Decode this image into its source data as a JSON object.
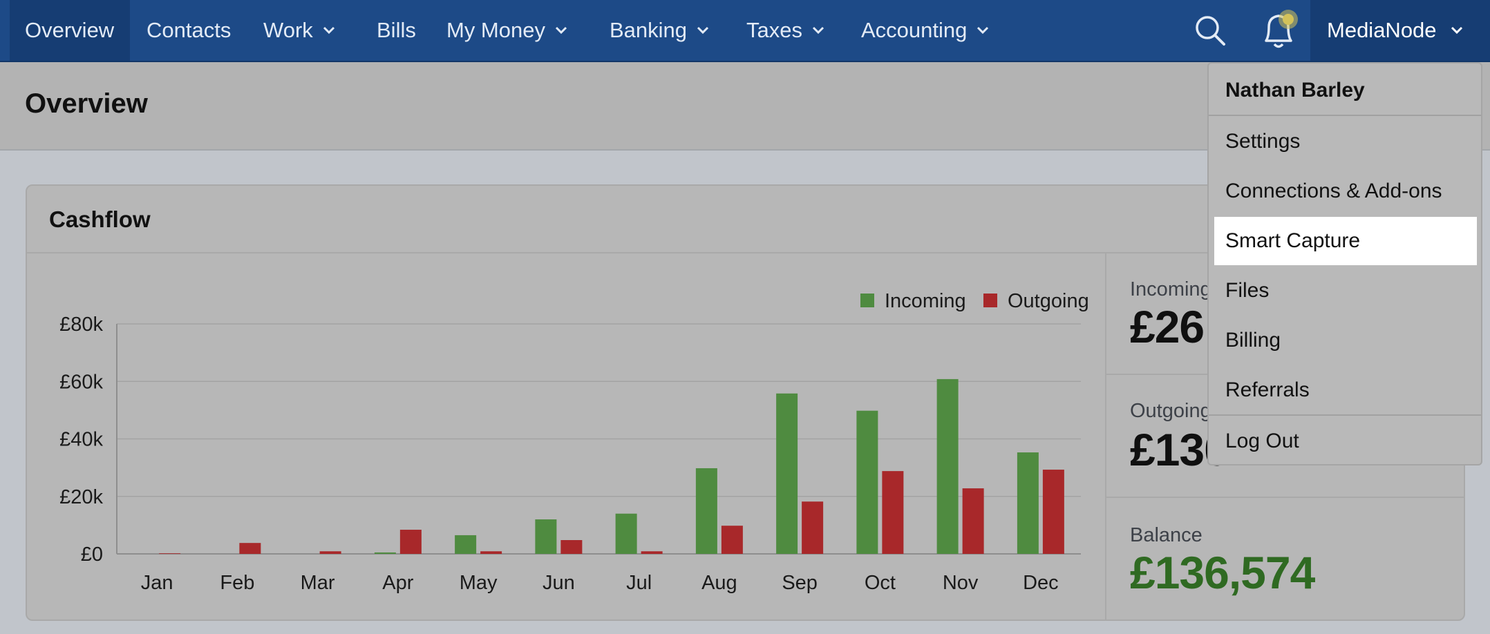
{
  "nav": {
    "items": [
      {
        "label": "Overview"
      },
      {
        "label": "Contacts"
      },
      {
        "label": "Work"
      },
      {
        "label": "Bills"
      },
      {
        "label": "My Money"
      },
      {
        "label": "Banking"
      },
      {
        "label": "Taxes"
      },
      {
        "label": "Accounting"
      }
    ],
    "account_label": "MediaNode",
    "search_icon": "search-icon",
    "notification_icon": "bell-icon"
  },
  "page": {
    "title": "Overview"
  },
  "cashflow": {
    "title": "Cashflow",
    "incoming_label": "Incoming",
    "incoming_value": "£26",
    "outgoing_label": "Outgoing",
    "outgoing_value": "£130",
    "balance_label": "Balance",
    "balance_value": "£136,574"
  },
  "account_menu": {
    "user_name": "Nathan Barley",
    "items": [
      {
        "label": "Settings"
      },
      {
        "label": "Connections & Add-ons"
      },
      {
        "label": "Smart Capture"
      },
      {
        "label": "Files"
      },
      {
        "label": "Billing"
      },
      {
        "label": "Referrals"
      }
    ],
    "logout_label": "Log Out"
  },
  "colors": {
    "incoming": "#4f8b40",
    "outgoing": "#a8282a",
    "balance": "#2f6a22",
    "nav_bg": "#1d4a87"
  },
  "chart_data": {
    "type": "bar",
    "categories": [
      "Jan",
      "Feb",
      "Mar",
      "Apr",
      "May",
      "Jun",
      "Jul",
      "Aug",
      "Sep",
      "Oct",
      "Nov",
      "Dec"
    ],
    "series": [
      {
        "name": "Incoming",
        "values": [
          0,
          0,
          0,
          500,
          6500,
          12000,
          14000,
          29800,
          55800,
          49800,
          60800,
          35300
        ]
      },
      {
        "name": "Outgoing",
        "values": [
          200,
          3800,
          900,
          8400,
          900,
          4800,
          900,
          9800,
          18200,
          28800,
          22800,
          29300
        ]
      }
    ],
    "y_ticks": [
      "£0",
      "£20k",
      "£40k",
      "£60k",
      "£80k"
    ],
    "ylim": [
      0,
      80000
    ],
    "grid": true,
    "legend_position": "top-right"
  }
}
